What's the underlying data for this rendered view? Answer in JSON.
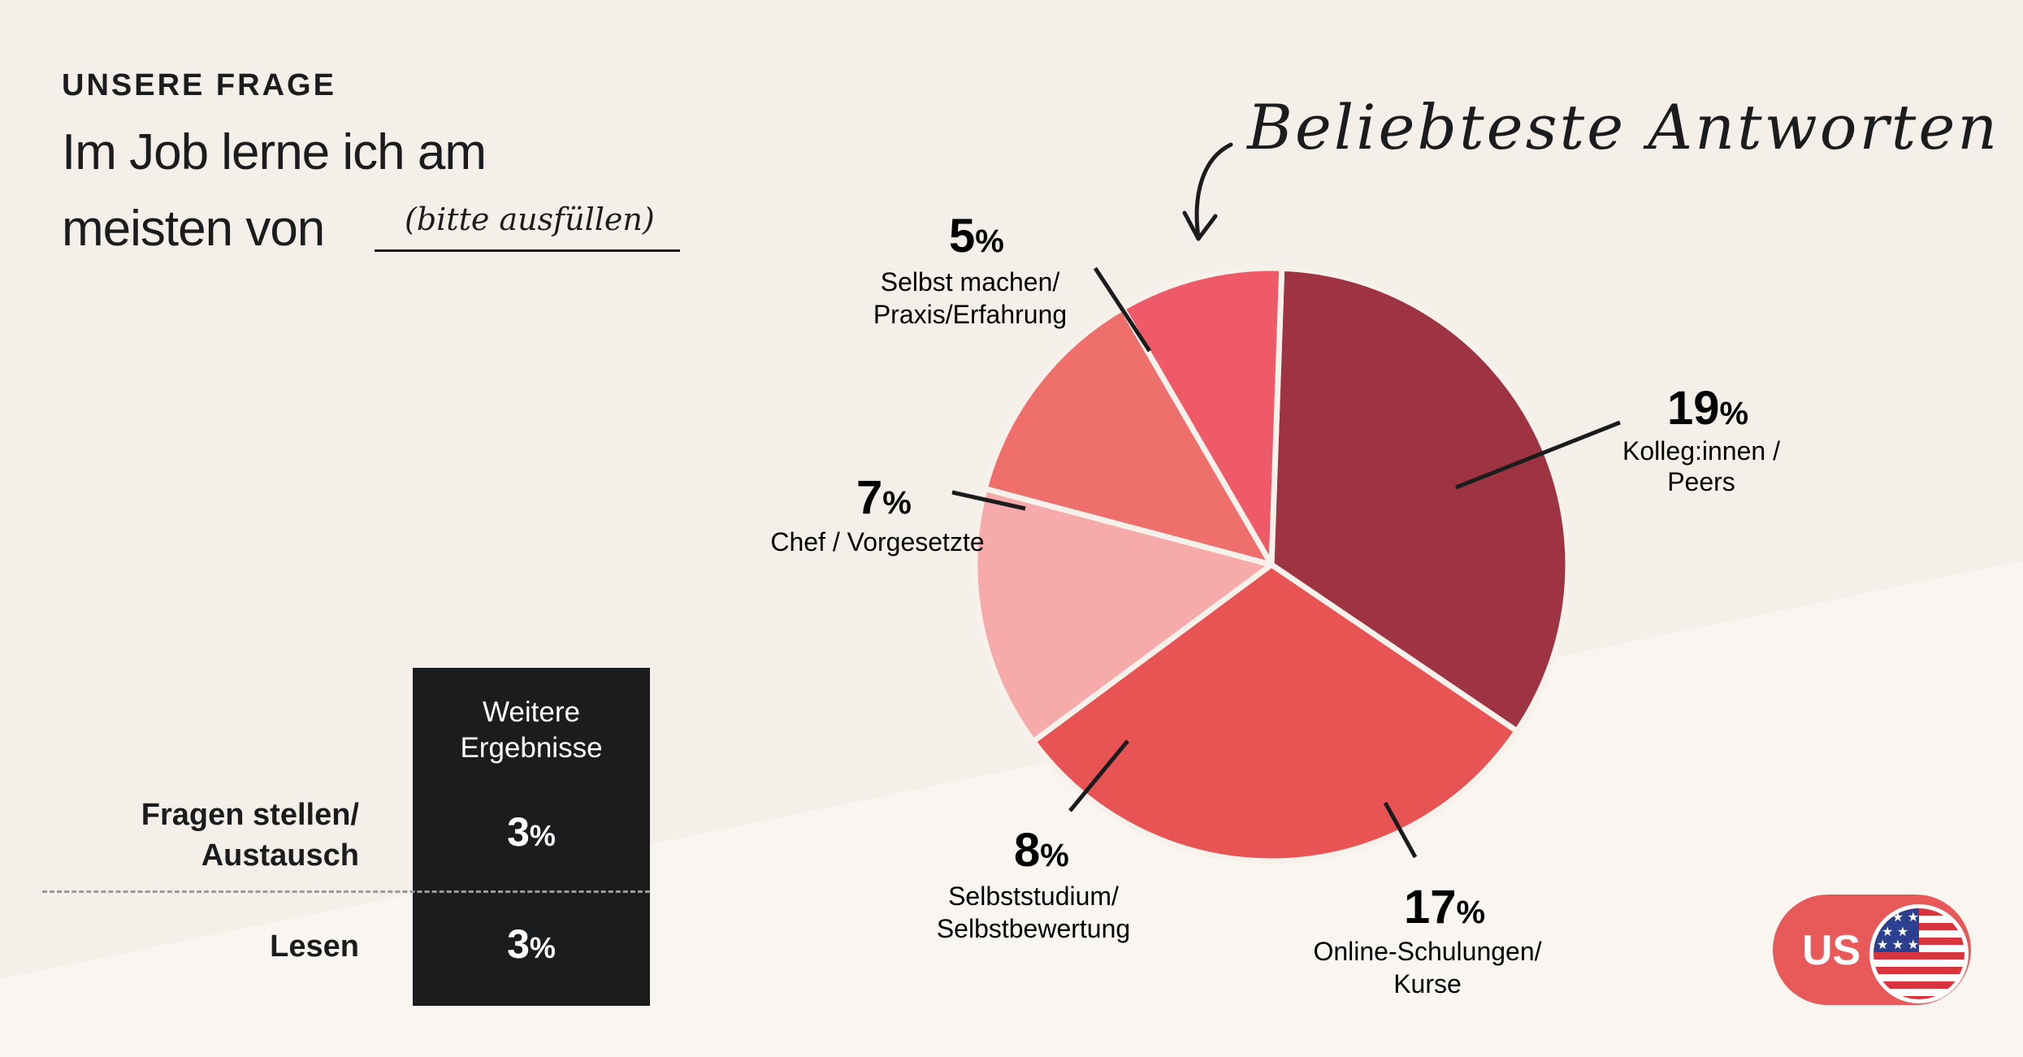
{
  "header": {
    "eyebrow": "UNSERE FRAGE",
    "question_line1": "Im Job lerne ich am",
    "question_line2": "meisten von",
    "blank_hint": "(bitte ausfüllen)"
  },
  "chart_data": {
    "type": "pie",
    "title": "Beliebteste Antworten",
    "slices": [
      {
        "label": "Kolleg:innen / Peers",
        "value": 19,
        "color": "#9e3442"
      },
      {
        "label": "Online-Schulungen/ Kurse",
        "value": 17,
        "color": "#e85454"
      },
      {
        "label": "Selbststudium/ Selbstbewertung",
        "value": 8,
        "color": "#f6aaaa"
      },
      {
        "label": "Chef / Vorgesetzte",
        "value": 7,
        "color": "#ee6f6c"
      },
      {
        "label": "Selbst machen/ Praxis/Erfahrung",
        "value": 5,
        "color": "#ee5a68"
      }
    ],
    "unit": "%"
  },
  "slice_labels": {
    "kolleg": [
      "Kolleg:innen /",
      "Peers"
    ],
    "online": [
      "Online-Schulungen/",
      "Kurse"
    ],
    "selbststudium": [
      "Selbststudium/",
      "Selbstbewertung"
    ],
    "chef": [
      "Chef / Vorgesetzte"
    ],
    "selbst": [
      "Selbst machen/",
      "Praxis/Erfahrung"
    ]
  },
  "more_results": {
    "heading_line1": "Weitere",
    "heading_line2": "Ergebnisse",
    "items": [
      {
        "label_line1": "Fragen stellen/",
        "label_line2": "Austausch",
        "value": "3",
        "unit": "%"
      },
      {
        "label_line1": "Lesen",
        "label_line2": "",
        "value": "3",
        "unit": "%"
      }
    ]
  },
  "badge": {
    "label": "US",
    "flag_icon": "us-flag-icon"
  }
}
